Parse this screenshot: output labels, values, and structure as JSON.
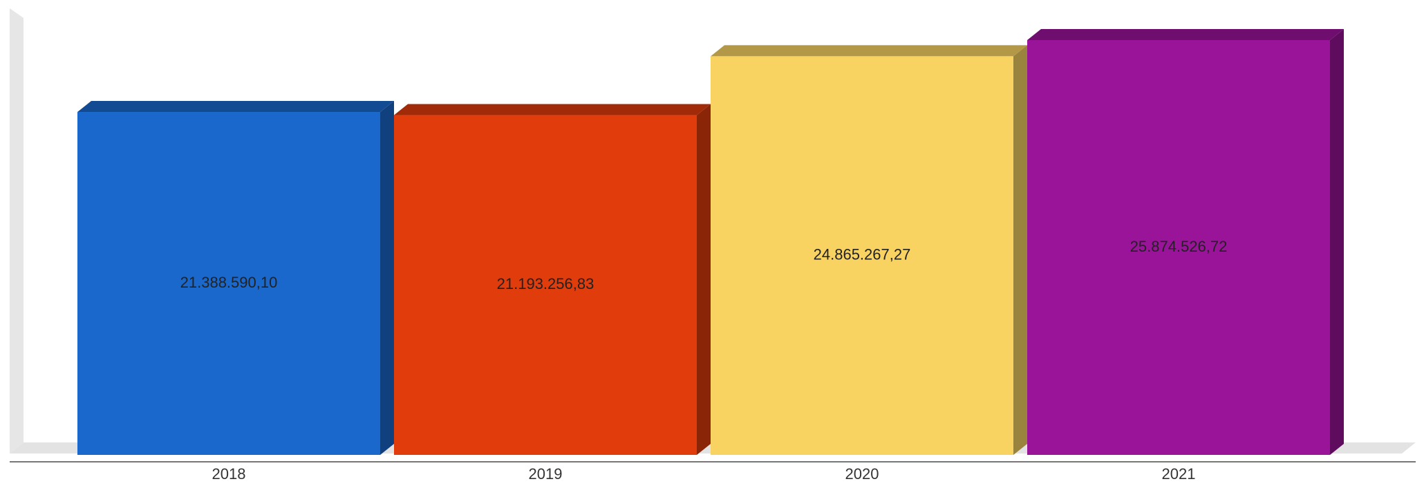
{
  "chart_data": {
    "type": "bar",
    "style": "3d",
    "categories": [
      "2018",
      "2019",
      "2020",
      "2021"
    ],
    "values": [
      21388590.1,
      21193256.83,
      24865267.27,
      25874526.72
    ],
    "value_labels": [
      "21.388.590,10",
      "21.193.256,83",
      "24.865.267,27",
      "25.874.526,72"
    ],
    "colors": [
      "#1a68cc",
      "#e03c0c",
      "#f8d362",
      "#9a149a"
    ],
    "title": "",
    "xlabel": "",
    "ylabel": "",
    "ylim": [
      0,
      25874526.72
    ],
    "grid": false,
    "legend": "none"
  }
}
